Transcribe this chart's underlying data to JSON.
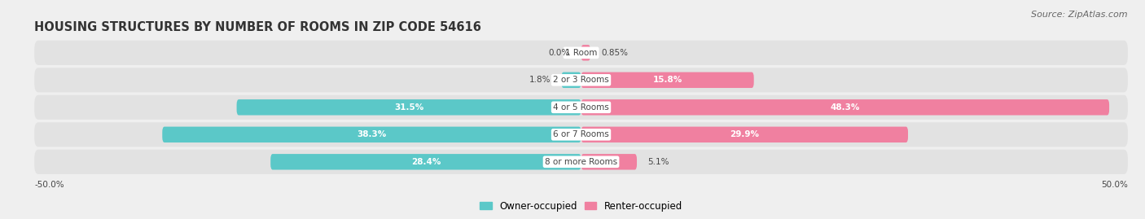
{
  "title": "HOUSING STRUCTURES BY NUMBER OF ROOMS IN ZIP CODE 54616",
  "source": "Source: ZipAtlas.com",
  "categories": [
    "1 Room",
    "2 or 3 Rooms",
    "4 or 5 Rooms",
    "6 or 7 Rooms",
    "8 or more Rooms"
  ],
  "owner_values": [
    0.0,
    1.8,
    31.5,
    38.3,
    28.4
  ],
  "renter_values": [
    0.85,
    15.8,
    48.3,
    29.9,
    5.1
  ],
  "owner_color": "#5BC8C8",
  "renter_color": "#F080A0",
  "bg_color": "#efefef",
  "row_bg_color": "#e2e2e2",
  "xlim_left": -50,
  "xlim_right": 50,
  "bar_height": 0.58,
  "title_fontsize": 10.5,
  "source_fontsize": 8,
  "category_fontsize": 7.5,
  "value_fontsize": 7.5,
  "legend_fontsize": 8.5
}
